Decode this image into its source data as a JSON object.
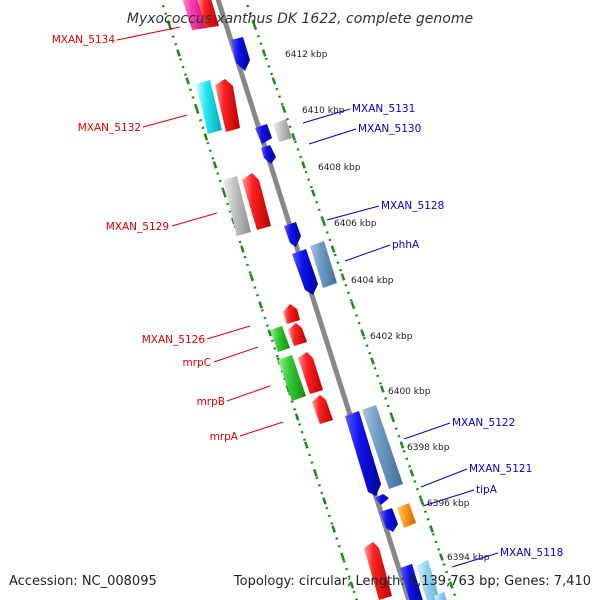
{
  "title": "Myxococcus xanthus DK 1622, complete genome",
  "footer": {
    "accession": "Accession: NC_008095",
    "summary": "Topology: circular; Length: 9,139,763 bp; Genes: 7,410"
  },
  "colors": {
    "backbone": "#888888",
    "ruler_dots": "#1f8a1f",
    "left_labels": "#dd0000",
    "right_labels": "#0000cc"
  },
  "kbp_ticks": [
    "6412 kbp",
    "6410 kbp",
    "6408 kbp",
    "6406 kbp",
    "6404 kbp",
    "6402 kbp",
    "6400 kbp",
    "6398 kbp",
    "6396 kbp",
    "6394 kbp"
  ],
  "left_labels": [
    "MXAN_5134",
    "MXAN_5132",
    "MXAN_5129",
    "MXAN_5126",
    "mrpC",
    "mrpB",
    "mrpA"
  ],
  "right_labels": [
    "MXAN_5131",
    "MXAN_5130",
    "MXAN_5128",
    "phhA",
    "MXAN_5122",
    "MXAN_5121",
    "tipA",
    "MXAN_5118"
  ]
}
